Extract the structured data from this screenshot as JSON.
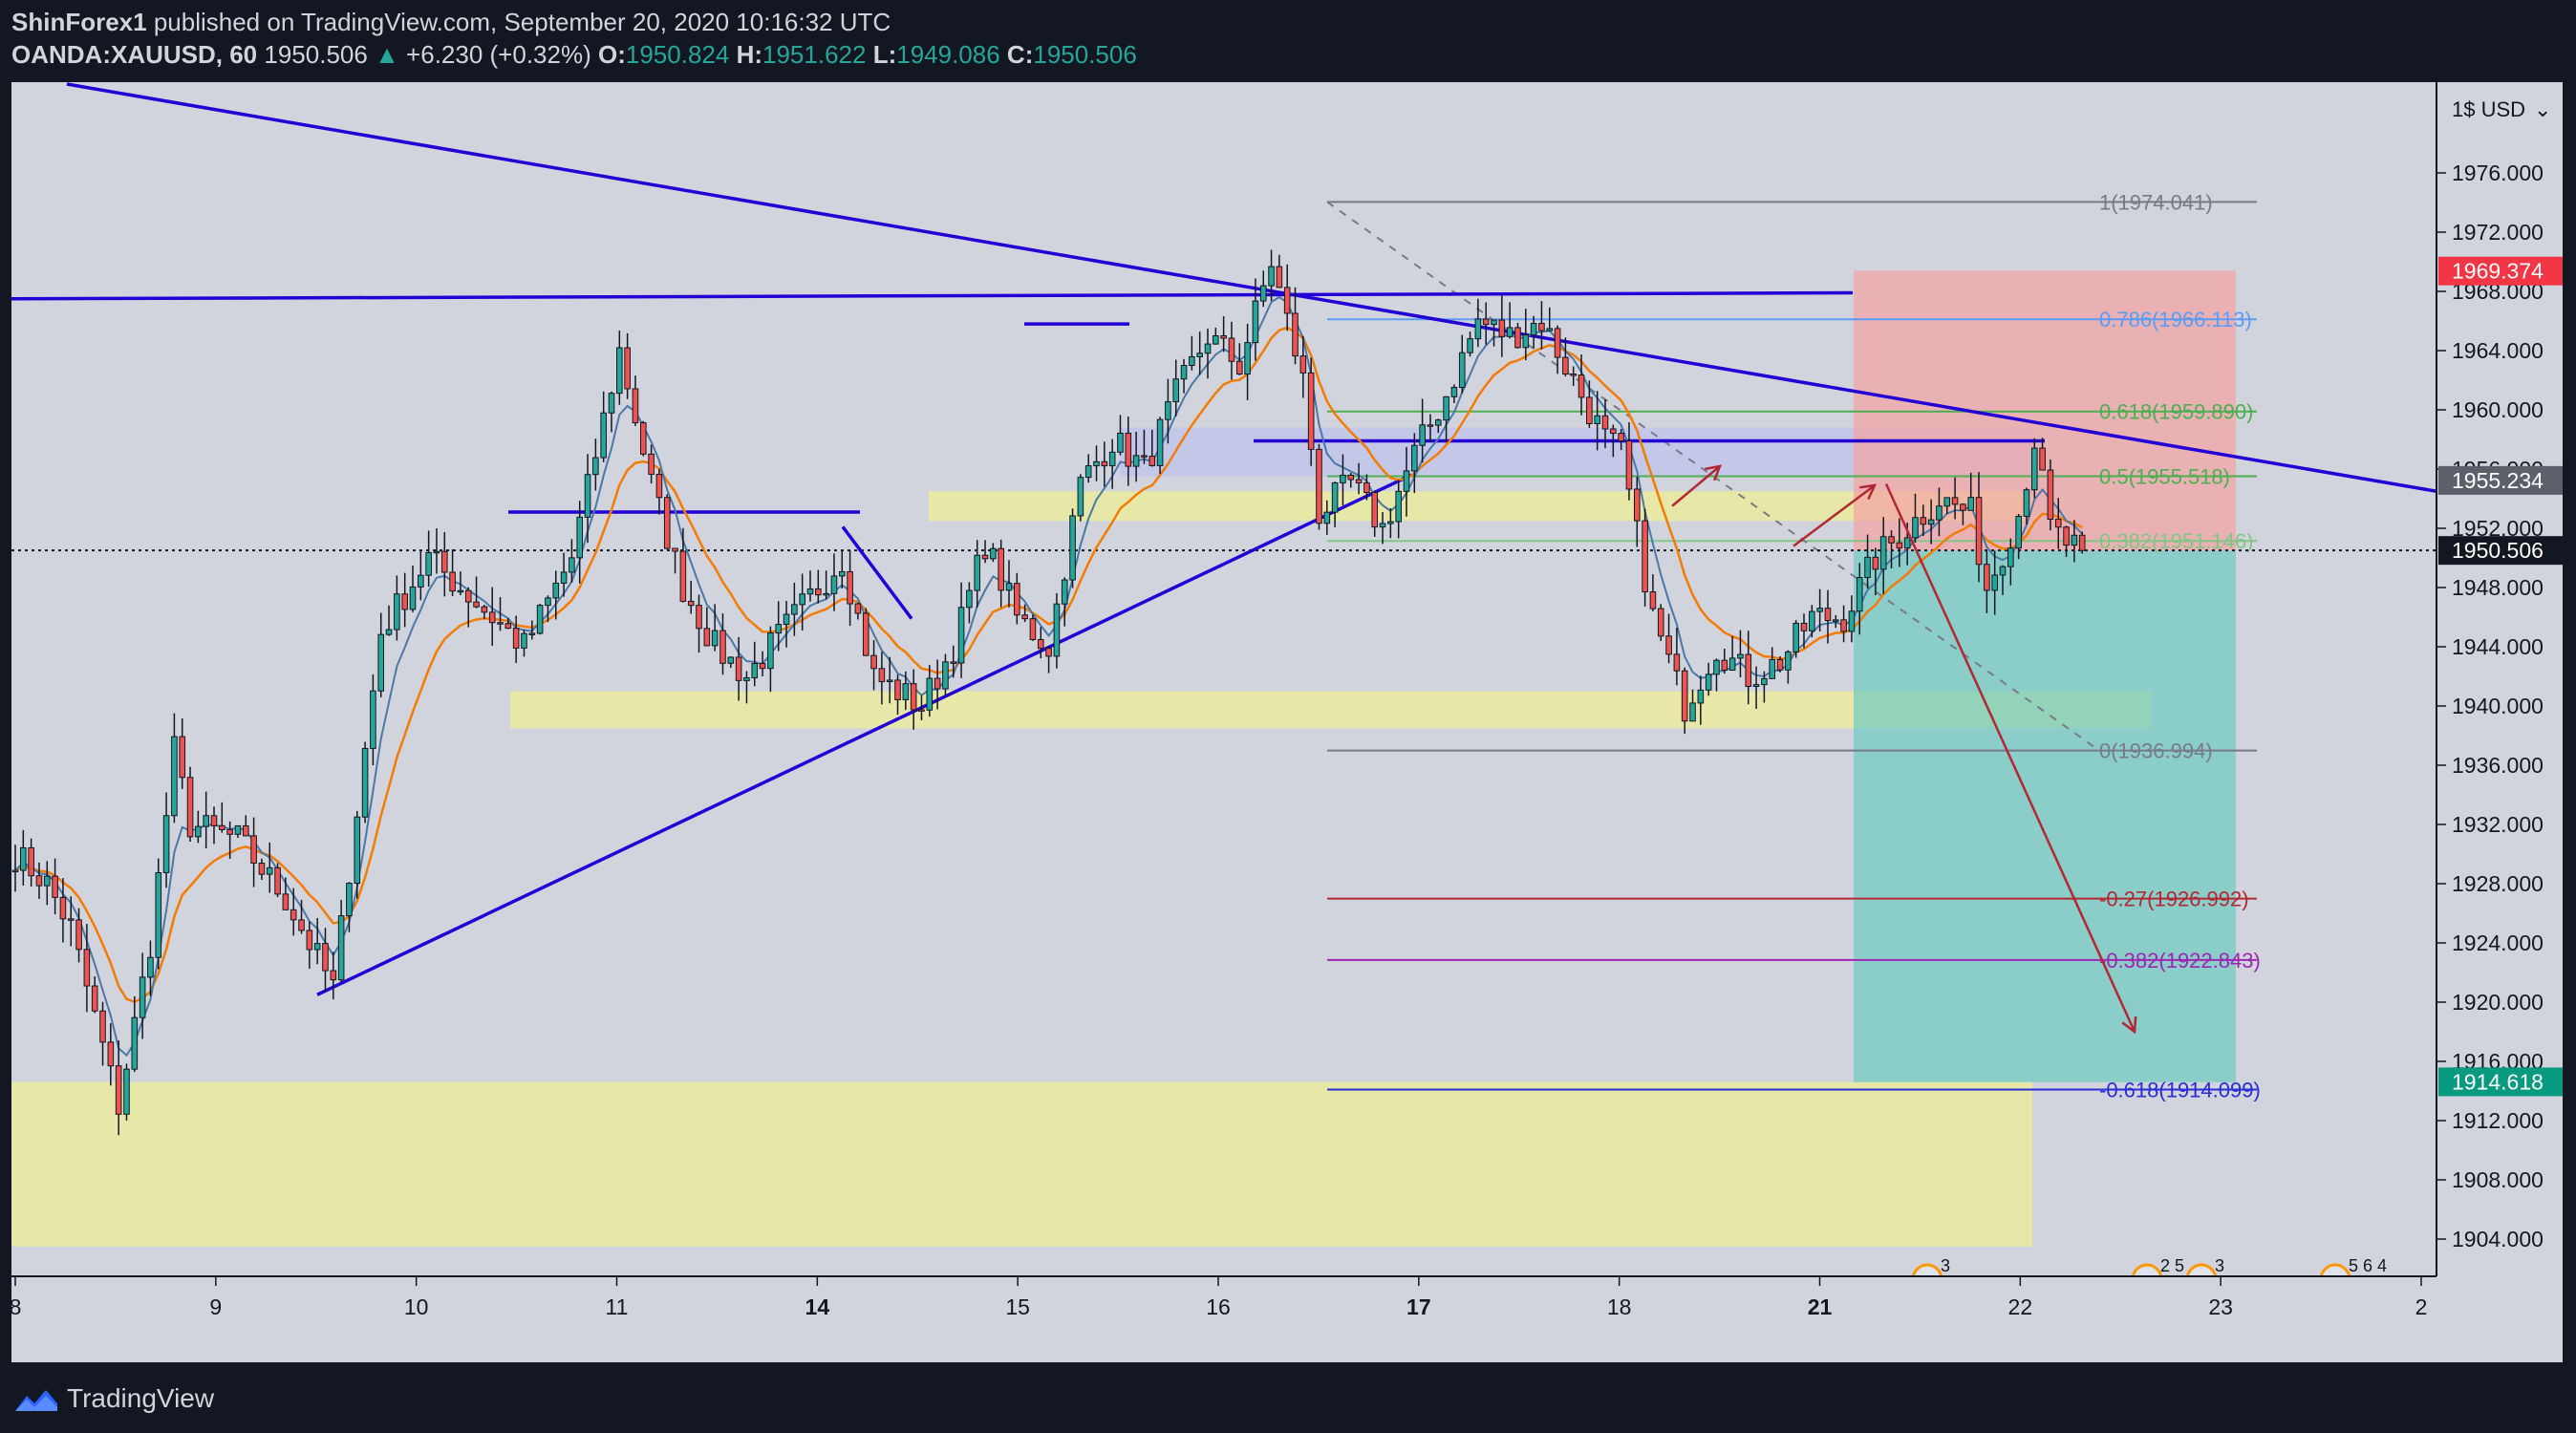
{
  "header": {
    "author": "ShinForex1",
    "published": "published on TradingView.com, September 20, 2020 10:16:32 UTC",
    "symbol": "OANDA:XAUUSD, 60",
    "last": "1950.506",
    "triangle": "▲",
    "change": "+6.230 (+0.32%)",
    "o_label": "O:",
    "o_value": "1950.824",
    "h_label": "H:",
    "h_value": "1951.622",
    "l_label": "L:",
    "l_value": "1949.086",
    "c_label": "C:",
    "c_value": "1950.506"
  },
  "footer": {
    "brand": "TradingView",
    "logo_icon": "tradingview-logo-icon"
  },
  "chart_data": {
    "type": "candlestick",
    "symbol": "OANDA:XAUUSD",
    "interval": "60",
    "currency": "USD",
    "currency_short": "1$",
    "ylim": [
      1900,
      1980
    ],
    "y_ticks": [
      1904,
      1908,
      1912,
      1916,
      1920,
      1924,
      1928,
      1932,
      1936,
      1940,
      1944,
      1948,
      1952,
      1956,
      1960,
      1964,
      1968,
      1972,
      1976
    ],
    "x_ticks": [
      {
        "label": "8",
        "bold": false
      },
      {
        "label": "9",
        "bold": false
      },
      {
        "label": "10",
        "bold": false
      },
      {
        "label": "11",
        "bold": false
      },
      {
        "label": "14",
        "bold": true
      },
      {
        "label": "15",
        "bold": false
      },
      {
        "label": "16",
        "bold": false
      },
      {
        "label": "17",
        "bold": true
      },
      {
        "label": "18",
        "bold": false
      },
      {
        "label": "21",
        "bold": true
      },
      {
        "label": "22",
        "bold": false
      },
      {
        "label": "23",
        "bold": false
      },
      {
        "label": "2",
        "bold": false
      }
    ],
    "candle_anchors": [
      {
        "x": 0,
        "y": 1930
      },
      {
        "x": 4,
        "y": 1928
      },
      {
        "x": 7,
        "y": 1925
      },
      {
        "x": 13,
        "y": 1913
      },
      {
        "x": 17,
        "y": 1924
      },
      {
        "x": 20,
        "y": 1937
      },
      {
        "x": 22,
        "y": 1932
      },
      {
        "x": 28,
        "y": 1931
      },
      {
        "x": 34,
        "y": 1927
      },
      {
        "x": 40,
        "y": 1921
      },
      {
        "x": 46,
        "y": 1945
      },
      {
        "x": 52,
        "y": 1950
      },
      {
        "x": 58,
        "y": 1947
      },
      {
        "x": 64,
        "y": 1944
      },
      {
        "x": 70,
        "y": 1950
      },
      {
        "x": 76,
        "y": 1964
      },
      {
        "x": 80,
        "y": 1955
      },
      {
        "x": 84,
        "y": 1948
      },
      {
        "x": 88,
        "y": 1944
      },
      {
        "x": 92,
        "y": 1942
      },
      {
        "x": 98,
        "y": 1946
      },
      {
        "x": 104,
        "y": 1950
      },
      {
        "x": 108,
        "y": 1942
      },
      {
        "x": 114,
        "y": 1940
      },
      {
        "x": 118,
        "y": 1944
      },
      {
        "x": 122,
        "y": 1951
      },
      {
        "x": 126,
        "y": 1946
      },
      {
        "x": 130,
        "y": 1944
      },
      {
        "x": 134,
        "y": 1955
      },
      {
        "x": 138,
        "y": 1958
      },
      {
        "x": 142,
        "y": 1956
      },
      {
        "x": 146,
        "y": 1961
      },
      {
        "x": 150,
        "y": 1965
      },
      {
        "x": 154,
        "y": 1963
      },
      {
        "x": 158,
        "y": 1970
      },
      {
        "x": 162,
        "y": 1962
      },
      {
        "x": 164,
        "y": 1953
      },
      {
        "x": 168,
        "y": 1955
      },
      {
        "x": 172,
        "y": 1952
      },
      {
        "x": 176,
        "y": 1957
      },
      {
        "x": 180,
        "y": 1961
      },
      {
        "x": 184,
        "y": 1966
      },
      {
        "x": 188,
        "y": 1965
      },
      {
        "x": 192,
        "y": 1966
      },
      {
        "x": 196,
        "y": 1962
      },
      {
        "x": 200,
        "y": 1958
      },
      {
        "x": 202,
        "y": 1957
      },
      {
        "x": 206,
        "y": 1946
      },
      {
        "x": 210,
        "y": 1940
      },
      {
        "x": 214,
        "y": 1944
      },
      {
        "x": 218,
        "y": 1942
      },
      {
        "x": 222,
        "y": 1943
      },
      {
        "x": 226,
        "y": 1946
      },
      {
        "x": 230,
        "y": 1946
      },
      {
        "x": 234,
        "y": 1950
      },
      {
        "x": 238,
        "y": 1952
      },
      {
        "x": 242,
        "y": 1954
      },
      {
        "x": 246,
        "y": 1953
      },
      {
        "x": 248,
        "y": 1948
      },
      {
        "x": 252,
        "y": 1953
      },
      {
        "x": 254,
        "y": 1958
      },
      {
        "x": 256,
        "y": 1952
      },
      {
        "x": 258,
        "y": 1951
      },
      {
        "x": 260,
        "y": 1950.5
      }
    ],
    "price_labels": [
      {
        "value": 1969.374,
        "text": "1969.374",
        "color": "#f23645"
      },
      {
        "value": 1955.234,
        "text": "1955.234",
        "color": "#5d606b"
      },
      {
        "value": 1950.506,
        "text": "1950.506",
        "color": "#131722"
      },
      {
        "value": 1914.618,
        "text": "1914.618",
        "color": "#089981"
      }
    ],
    "fibonacci": [
      {
        "text": "1(1974.041)",
        "value": 1974.041,
        "color": "#787b86"
      },
      {
        "text": "0.786(1966.113)",
        "value": 1966.113,
        "color": "#5b9cf6"
      },
      {
        "text": "0.618(1959.890)",
        "value": 1959.89,
        "color": "#4caf50"
      },
      {
        "text": "0.5(1955.518)",
        "value": 1955.518,
        "color": "#4caf50"
      },
      {
        "text": "0.382(1951.146)",
        "value": 1951.146,
        "color": "#81c784"
      },
      {
        "text": "0(1936.994)",
        "value": 1936.994,
        "color": "#787b86"
      },
      {
        "text": "-0.27(1926.992)",
        "value": 1926.992,
        "color": "#b22833"
      },
      {
        "text": "-0.382(1922.843)",
        "value": 1922.843,
        "color": "#9c27b0"
      },
      {
        "text": "-0.618(1914.099)",
        "value": 1914.099,
        "color": "#2a2ed5"
      }
    ],
    "events": [
      {
        "text": "3"
      },
      {
        "text": "2 5"
      },
      {
        "text": "3"
      },
      {
        "text": "5 6 4"
      }
    ],
    "colors": {
      "up": "#26a69a",
      "down": "#ef5350",
      "trend": "#2200d6",
      "ema_fast": "#4a78a8",
      "ema_slow": "#f57c00",
      "zone": "#ecec9a",
      "stop": "#f3a2a2",
      "target": "#6ecac0"
    }
  }
}
